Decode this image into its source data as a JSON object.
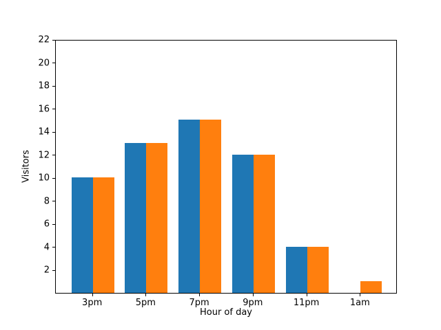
{
  "chart_data": {
    "type": "bar",
    "title": "",
    "xlabel": "Hour of day",
    "ylabel": "Visitors",
    "categories": [
      "3pm",
      "5pm",
      "7pm",
      "9pm",
      "11pm",
      "1am"
    ],
    "series": [
      {
        "name": "blue-series",
        "color": "#1f77b4",
        "values": [
          10,
          13,
          15,
          12,
          4,
          0
        ]
      },
      {
        "name": "orange-series",
        "color": "#ff7f0e",
        "values": [
          10,
          13,
          15,
          12,
          4,
          1
        ]
      }
    ],
    "ylim": [
      0,
      22
    ],
    "yticks": [
      2,
      4,
      6,
      8,
      10,
      12,
      14,
      16,
      18,
      20,
      22
    ],
    "grid": false,
    "legend": "none",
    "bar_group_width": 0.8,
    "axis_color": "#000000",
    "background_color": "#ffffff"
  }
}
